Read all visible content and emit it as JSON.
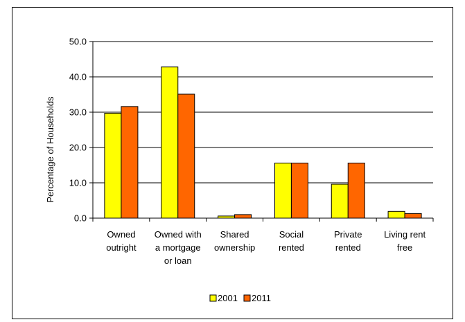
{
  "chart_data": {
    "type": "bar",
    "title": "",
    "xlabel": "",
    "ylabel": "Percentage of Households",
    "ylim": [
      0,
      50
    ],
    "yticks": [
      "0.0",
      "10.0",
      "20.0",
      "30.0",
      "40.0",
      "50.0"
    ],
    "grid": true,
    "legend_position": "bottom",
    "categories": [
      [
        "Owned",
        "outright"
      ],
      [
        "Owned with",
        "a mortgage",
        "or loan"
      ],
      [
        "Shared",
        "ownership"
      ],
      [
        "Social",
        "rented"
      ],
      [
        "Private",
        "rented"
      ],
      [
        "Living rent",
        "free"
      ]
    ],
    "series": [
      {
        "name": "2001",
        "color": "#ffff00",
        "values": [
          29.7,
          42.8,
          0.6,
          15.6,
          9.6,
          1.9
        ]
      },
      {
        "name": "2011",
        "color": "#ff6600",
        "values": [
          31.6,
          35.1,
          1.0,
          15.6,
          15.6,
          1.3
        ]
      }
    ]
  }
}
